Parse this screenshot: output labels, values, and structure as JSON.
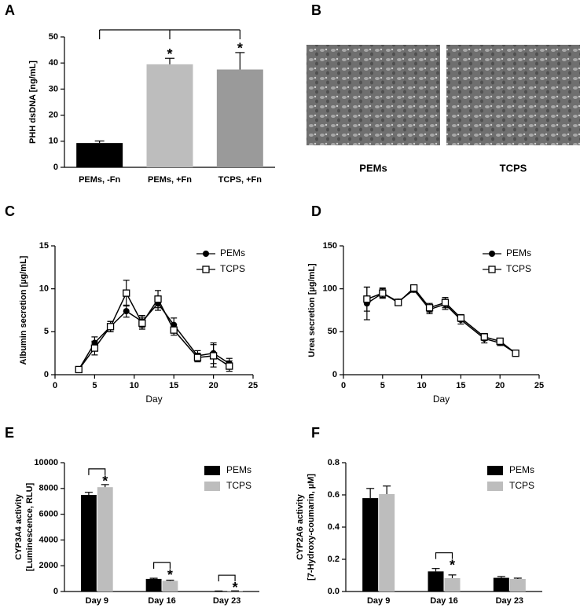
{
  "chart_data": [
    {
      "panel": "A",
      "type": "bar",
      "ylabel": "PHH dsDNA [ng/mL]",
      "categories": [
        "PEMs, -Fn",
        "PEMs, +Fn",
        "TCPS, +Fn"
      ],
      "values": [
        9.3,
        39.5,
        37.5
      ],
      "errors": [
        0.8,
        2.3,
        6.5
      ],
      "colors": [
        "#000000",
        "#bdbdbd",
        "#9a9a9a"
      ],
      "significance": [
        null,
        "*",
        "*"
      ],
      "ylim": [
        0,
        50
      ],
      "yticks": [
        0,
        10,
        20,
        30,
        40,
        50
      ]
    },
    {
      "panel": "B",
      "type": "image",
      "captions": [
        "PEMs",
        "TCPS"
      ]
    },
    {
      "panel": "C",
      "type": "line",
      "xlabel": "Day",
      "ylabel": "Albumin secretion [µg/mL]",
      "x": [
        3,
        5,
        7,
        9,
        11,
        13,
        15,
        18,
        20,
        22
      ],
      "series": [
        {
          "name": "PEMs",
          "color": "#000000",
          "marker": "circle",
          "values": [
            0.6,
            3.7,
            5.6,
            7.4,
            6.2,
            8.3,
            5.8,
            2.2,
            2.5,
            1.3
          ],
          "errors": [
            0.2,
            0.7,
            0.6,
            0.7,
            0.7,
            0.8,
            0.8,
            0.6,
            1.2,
            0.6
          ]
        },
        {
          "name": "TCPS",
          "color": "#000000",
          "marker": "square",
          "values": [
            0.6,
            3.1,
            5.6,
            9.5,
            6.0,
            8.8,
            5.2,
            2.0,
            2.2,
            1.0
          ],
          "errors": [
            0.2,
            0.8,
            0.6,
            1.5,
            0.7,
            1.0,
            0.6,
            0.5,
            1.3,
            0.6
          ]
        }
      ],
      "xlim": [
        0,
        25
      ],
      "xticks": [
        0,
        5,
        10,
        15,
        20,
        25
      ],
      "ylim": [
        0,
        15
      ],
      "yticks": [
        0,
        5,
        10,
        15
      ],
      "legend": "upper right"
    },
    {
      "panel": "D",
      "type": "line",
      "xlabel": "Day",
      "ylabel": "Urea secretion [µg/mL]",
      "x": [
        3,
        5,
        7,
        9,
        11,
        13,
        15,
        18,
        20,
        22
      ],
      "series": [
        {
          "name": "PEMs",
          "color": "#000000",
          "marker": "circle",
          "values": [
            83,
            95,
            85,
            99,
            76,
            82,
            64,
            42,
            37,
            25
          ],
          "errors": [
            19,
            5,
            3,
            3,
            5,
            6,
            5,
            5,
            3,
            2
          ]
        },
        {
          "name": "TCPS",
          "color": "#000000",
          "marker": "square",
          "values": [
            88,
            95,
            84,
            101,
            78,
            84,
            66,
            44,
            39,
            25
          ],
          "errors": [
            14,
            6,
            3,
            3,
            5,
            6,
            4,
            4,
            3,
            2
          ]
        }
      ],
      "xlim": [
        0,
        25
      ],
      "xticks": [
        0,
        5,
        10,
        15,
        20,
        25
      ],
      "ylim": [
        0,
        150
      ],
      "yticks": [
        0,
        50,
        100,
        150
      ],
      "legend": "upper right"
    },
    {
      "panel": "E",
      "type": "grouped_bar",
      "ylabel": [
        "CYP3A4 activity",
        "[Luminescence, RLU]"
      ],
      "categories": [
        "Day 9",
        "Day 16",
        "Day 23"
      ],
      "series": [
        {
          "name": "PEMs",
          "color": "#000000",
          "values": [
            7500,
            980,
            30
          ],
          "errors": [
            200,
            50,
            10
          ]
        },
        {
          "name": "TCPS",
          "color": "#bdbdbd",
          "values": [
            8100,
            830,
            40
          ],
          "errors": [
            200,
            50,
            10
          ],
          "significance": [
            "*",
            "*",
            "*"
          ]
        }
      ],
      "ylim": [
        0,
        10000
      ],
      "yticks": [
        0,
        2000,
        4000,
        6000,
        8000,
        10000
      ],
      "legend": "upper right"
    },
    {
      "panel": "F",
      "type": "grouped_bar",
      "ylabel": [
        "CYP2A6 activity",
        "[7-Hydroxy-coumarin, µM]"
      ],
      "categories": [
        "Day 9",
        "Day 16",
        "Day 23"
      ],
      "series": [
        {
          "name": "PEMs",
          "color": "#000000",
          "values": [
            0.58,
            0.125,
            0.085
          ],
          "errors": [
            0.06,
            0.018,
            0.008
          ]
        },
        {
          "name": "TCPS",
          "color": "#bdbdbd",
          "values": [
            0.605,
            0.083,
            0.078
          ],
          "errors": [
            0.05,
            0.02,
            0.005
          ],
          "significance": [
            null,
            "*",
            null
          ]
        }
      ],
      "ylim": [
        0,
        0.8
      ],
      "yticks": [
        {
          "value": 0,
          "label": "0.0"
        },
        0.2,
        0.4,
        0.6,
        0.8
      ],
      "legend": "upper right"
    }
  ]
}
